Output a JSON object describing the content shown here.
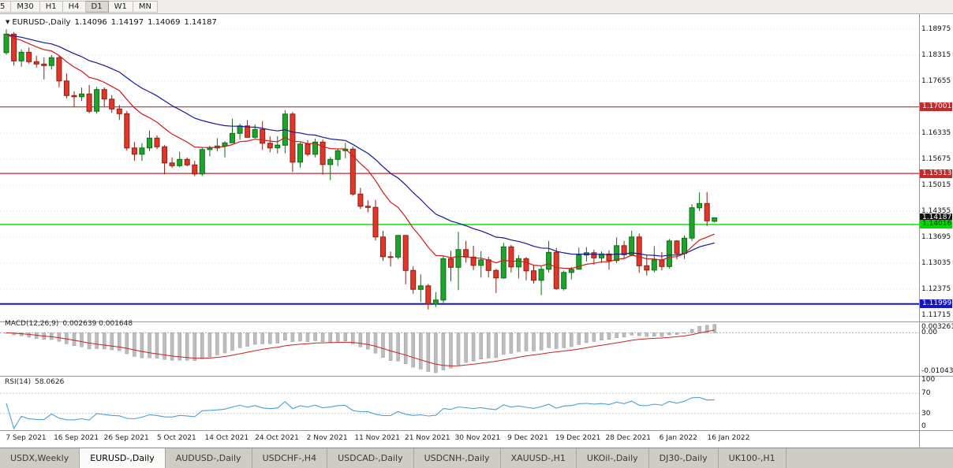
{
  "toolbar": {
    "periods": [
      {
        "label": "5",
        "active": false
      },
      {
        "label": "M30",
        "active": false
      },
      {
        "label": "H1",
        "active": false
      },
      {
        "label": "H4",
        "active": false
      },
      {
        "label": "D1",
        "active": true
      },
      {
        "label": "W1",
        "active": false
      },
      {
        "label": "MN",
        "active": false
      }
    ]
  },
  "chart": {
    "title": {
      "icon": "▼",
      "symbol": "EURUSD-,Daily",
      "open": "1.14096",
      "high": "1.14197",
      "low": "1.14069",
      "close": "1.14187"
    }
  },
  "colors": {
    "bull": "#1fa32b",
    "bull_border": "#0b6e14",
    "bear": "#e0372a",
    "bear_border": "#8f1d12",
    "grid": "#dcdcdc",
    "rsi": "#4d9fd6",
    "macd_bar": "#bdbdbd",
    "macd_bar_edge": "#9a9a9a",
    "macd_signal": "#cc2222",
    "zero_line": "#aaaaaa"
  },
  "chart_data": {
    "type": "candlestick",
    "symbol": "EURUSD-",
    "timeframe": "Daily",
    "y_ticks": [
      "1.18975",
      "1.18315",
      "1.17655",
      "1.16335",
      "1.15675",
      "1.15015",
      "1.14355",
      "1.13695",
      "1.13035",
      "1.12375",
      "1.11715"
    ],
    "levels": [
      {
        "price": 1.17001,
        "color": "#c22b2b",
        "width": 1.2
      },
      {
        "price": 1.15313,
        "color": "#c22b2b",
        "width": 1.2
      },
      {
        "price": 1.14016,
        "color": "#00d800",
        "width": 1.4
      },
      {
        "price": 1.11999,
        "color": "#1414c8",
        "width": 2
      }
    ],
    "badges": [
      {
        "price": 1.17001,
        "label": "1.17001",
        "bg": "#c22b2b",
        "fg": "#ffffff"
      },
      {
        "price": 1.15313,
        "label": "1.15313",
        "bg": "#c22b2b",
        "fg": "#ffffff"
      },
      {
        "price": 1.14187,
        "label": "1.14187",
        "bg": "#111111",
        "fg": "#ffffff"
      },
      {
        "price": 1.14016,
        "label": "1.14016",
        "bg": "#00d800",
        "fg": "#002a00"
      },
      {
        "price": 1.11999,
        "label": "1.11999",
        "bg": "#1414c8",
        "fg": "#ffffff"
      }
    ],
    "overlays": [
      {
        "name": "ma-fast",
        "period": 12,
        "color": "#d41a1a"
      },
      {
        "name": "ma-slow",
        "period": 26,
        "color": "#16169a"
      }
    ],
    "indicators": [
      {
        "type": "macd",
        "label": "MACD(12,26,9)",
        "values_text": "0.002639 0.001648",
        "params": [
          12,
          26,
          9
        ],
        "axis_labels": [
          "0.003261",
          "0.00",
          "-0.010436"
        ]
      },
      {
        "type": "rsi",
        "label": "RSI(14)",
        "value_text": "58.0626",
        "period": 14,
        "levels": [
          70,
          30
        ],
        "axis_labels": [
          "100",
          "70",
          "30",
          "0"
        ]
      }
    ],
    "x_labels": [
      "7 Sep 2021",
      "16 Sep 2021",
      "26 Sep 2021",
      "5 Oct 2021",
      "14 Oct 2021",
      "24 Oct 2021",
      "2 Nov 2021",
      "11 Nov 2021",
      "21 Nov 2021",
      "30 Nov 2021",
      "9 Dec 2021",
      "19 Dec 2021",
      "28 Dec 2021",
      "6 Jan 2022",
      "16 Jan 2022"
    ],
    "candles": [
      [
        1.1838,
        1.1897,
        1.1833,
        1.1885
      ],
      [
        1.1885,
        1.189,
        1.1805,
        1.1817
      ],
      [
        1.1817,
        1.1846,
        1.1802,
        1.1839
      ],
      [
        1.1839,
        1.1851,
        1.181,
        1.1815
      ],
      [
        1.1815,
        1.183,
        1.18,
        1.1809
      ],
      [
        1.1809,
        1.1826,
        1.177,
        1.1805
      ],
      [
        1.1805,
        1.1832,
        1.1795,
        1.1825
      ],
      [
        1.1825,
        1.183,
        1.175,
        1.1766
      ],
      [
        1.1766,
        1.1785,
        1.1722,
        1.1729
      ],
      [
        1.1729,
        1.174,
        1.17,
        1.1726
      ],
      [
        1.1726,
        1.1749,
        1.1715,
        1.1733
      ],
      [
        1.1733,
        1.1756,
        1.1684,
        1.1689
      ],
      [
        1.1689,
        1.1751,
        1.1683,
        1.1744
      ],
      [
        1.1744,
        1.175,
        1.1701,
        1.172
      ],
      [
        1.172,
        1.173,
        1.1685,
        1.1695
      ],
      [
        1.1695,
        1.1705,
        1.1667,
        1.1683
      ],
      [
        1.1683,
        1.169,
        1.1589,
        1.1596
      ],
      [
        1.1596,
        1.1611,
        1.1563,
        1.158
      ],
      [
        1.158,
        1.1608,
        1.1563,
        1.1596
      ],
      [
        1.1596,
        1.164,
        1.1588,
        1.1621
      ],
      [
        1.1621,
        1.1628,
        1.1593,
        1.1599
      ],
      [
        1.1599,
        1.1603,
        1.1529,
        1.1558
      ],
      [
        1.1558,
        1.1572,
        1.1546,
        1.1551
      ],
      [
        1.1551,
        1.1586,
        1.1547,
        1.1567
      ],
      [
        1.1567,
        1.1572,
        1.1549,
        1.1553
      ],
      [
        1.1553,
        1.1563,
        1.1524,
        1.153
      ],
      [
        1.153,
        1.1597,
        1.1525,
        1.1592
      ],
      [
        1.1592,
        1.1602,
        1.1575,
        1.1596
      ],
      [
        1.1596,
        1.1621,
        1.1587,
        1.1601
      ],
      [
        1.1601,
        1.1613,
        1.1572,
        1.1609
      ],
      [
        1.1609,
        1.167,
        1.1609,
        1.1633
      ],
      [
        1.1633,
        1.1658,
        1.1617,
        1.1652
      ],
      [
        1.1652,
        1.1667,
        1.1622,
        1.1623
      ],
      [
        1.1623,
        1.1656,
        1.162,
        1.1643
      ],
      [
        1.1643,
        1.1664,
        1.1591,
        1.1608
      ],
      [
        1.1608,
        1.1626,
        1.1585,
        1.1596
      ],
      [
        1.1596,
        1.1626,
        1.1582,
        1.1603
      ],
      [
        1.1603,
        1.1692,
        1.1582,
        1.1682
      ],
      [
        1.1682,
        1.1687,
        1.1535,
        1.156
      ],
      [
        1.156,
        1.161,
        1.1546,
        1.1606
      ],
      [
        1.1606,
        1.1616,
        1.1575,
        1.158
      ],
      [
        1.158,
        1.162,
        1.1572,
        1.1611
      ],
      [
        1.1611,
        1.1617,
        1.1528,
        1.1554
      ],
      [
        1.1554,
        1.1573,
        1.1514,
        1.1567
      ],
      [
        1.1567,
        1.1594,
        1.155,
        1.1589
      ],
      [
        1.1589,
        1.1609,
        1.157,
        1.1593
      ],
      [
        1.1593,
        1.1599,
        1.1475,
        1.1479
      ],
      [
        1.1479,
        1.1495,
        1.1441,
        1.1448
      ],
      [
        1.1448,
        1.1463,
        1.1433,
        1.1445
      ],
      [
        1.1445,
        1.1464,
        1.1361,
        1.137
      ],
      [
        1.137,
        1.1386,
        1.1309,
        1.132
      ],
      [
        1.132,
        1.1333,
        1.1295,
        1.1319
      ],
      [
        1.1319,
        1.1375,
        1.1314,
        1.1374
      ],
      [
        1.1374,
        1.1374,
        1.125,
        1.1285
      ],
      [
        1.1285,
        1.1296,
        1.1226,
        1.1237
      ],
      [
        1.1237,
        1.1275,
        1.1205,
        1.1246
      ],
      [
        1.1246,
        1.1251,
        1.1186,
        1.12
      ],
      [
        1.12,
        1.123,
        1.1192,
        1.121
      ],
      [
        1.121,
        1.1322,
        1.1203,
        1.1315
      ],
      [
        1.1315,
        1.1335,
        1.1258,
        1.1293
      ],
      [
        1.1293,
        1.1383,
        1.1235,
        1.1338
      ],
      [
        1.1338,
        1.136,
        1.1305,
        1.1319
      ],
      [
        1.1319,
        1.1348,
        1.1286,
        1.1298
      ],
      [
        1.1298,
        1.1334,
        1.1267,
        1.1312
      ],
      [
        1.1312,
        1.132,
        1.1267,
        1.1285
      ],
      [
        1.1285,
        1.1289,
        1.1228,
        1.1266
      ],
      [
        1.1266,
        1.1355,
        1.1264,
        1.1345
      ],
      [
        1.1345,
        1.135,
        1.128,
        1.1294
      ],
      [
        1.1294,
        1.1324,
        1.1265,
        1.1315
      ],
      [
        1.1315,
        1.1319,
        1.126,
        1.1284
      ],
      [
        1.1284,
        1.1298,
        1.1252,
        1.126
      ],
      [
        1.126,
        1.1296,
        1.1222,
        1.1288
      ],
      [
        1.1288,
        1.136,
        1.128,
        1.1331
      ],
      [
        1.1331,
        1.1342,
        1.1236,
        1.1239
      ],
      [
        1.1239,
        1.1285,
        1.1234,
        1.128
      ],
      [
        1.128,
        1.1294,
        1.1262,
        1.1288
      ],
      [
        1.1288,
        1.1343,
        1.1287,
        1.1324
      ],
      [
        1.1324,
        1.1344,
        1.1308,
        1.133
      ],
      [
        1.133,
        1.1338,
        1.13,
        1.1317
      ],
      [
        1.1317,
        1.1333,
        1.1304,
        1.1327
      ],
      [
        1.1327,
        1.1336,
        1.1287,
        1.131
      ],
      [
        1.131,
        1.1369,
        1.1304,
        1.1348
      ],
      [
        1.1348,
        1.136,
        1.1315,
        1.1325
      ],
      [
        1.1325,
        1.1386,
        1.1321,
        1.137
      ],
      [
        1.137,
        1.1379,
        1.1279,
        1.1297
      ],
      [
        1.1297,
        1.1323,
        1.1272,
        1.1286
      ],
      [
        1.1286,
        1.1347,
        1.128,
        1.1312
      ],
      [
        1.1312,
        1.1332,
        1.1285,
        1.1295
      ],
      [
        1.1295,
        1.1365,
        1.129,
        1.136
      ],
      [
        1.136,
        1.1362,
        1.1313,
        1.1328
      ],
      [
        1.1328,
        1.1374,
        1.1314,
        1.1367
      ],
      [
        1.1367,
        1.1453,
        1.136,
        1.1444
      ],
      [
        1.1444,
        1.1483,
        1.1436,
        1.1455
      ],
      [
        1.1455,
        1.1484,
        1.1398,
        1.1411
      ],
      [
        1.14096,
        1.14197,
        1.14069,
        1.14187
      ]
    ]
  },
  "tabs": [
    {
      "label": "USDX,Weekly",
      "active": false
    },
    {
      "label": "EURUSD-,Daily",
      "active": true
    },
    {
      "label": "AUDUSD-,Daily",
      "active": false
    },
    {
      "label": "USDCHF-,H4",
      "active": false
    },
    {
      "label": "USDCAD-,Daily",
      "active": false
    },
    {
      "label": "USDCNH-,Daily",
      "active": false
    },
    {
      "label": "XAUUSD-,H1",
      "active": false
    },
    {
      "label": "UKOil-,Daily",
      "active": false
    },
    {
      "label": "DJ30-,Daily",
      "active": false
    },
    {
      "label": "UK100-,H1",
      "active": false
    }
  ]
}
